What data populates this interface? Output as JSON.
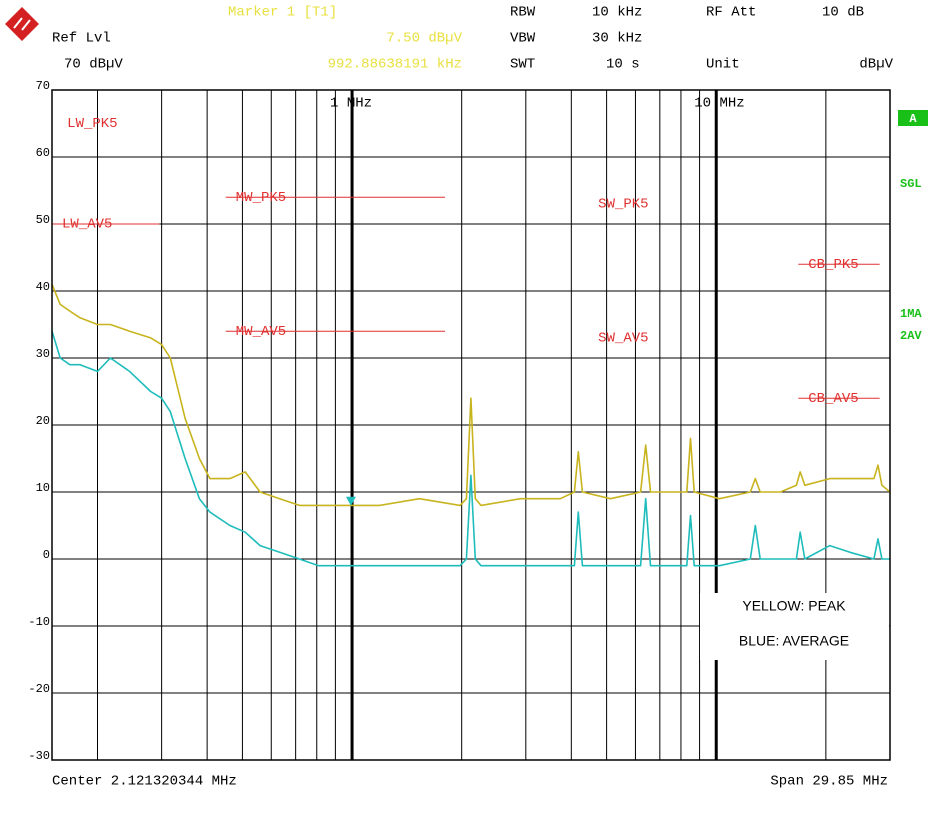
{
  "chart_data": {
    "type": "line",
    "header": {
      "marker": "Marker 1 [T1]",
      "ref_lvl": "Ref Lvl",
      "ref_value": "70 dBµV",
      "marker_level": "7.50 dBµV",
      "marker_freq": "992.88638191 kHz",
      "rbw": "RBW",
      "rbw_value": "10 kHz",
      "rf_att": "RF Att",
      "rf_att_value": "10 dB",
      "vbw": "VBW",
      "vbw_value": "30 kHz",
      "swt": "SWT",
      "swt_value": "10 s",
      "unit": "Unit",
      "unit_value": "dBµV"
    },
    "footer": {
      "center": "Center 2.121320344 MHz",
      "span": "Span 29.85 MHz"
    },
    "side_labels": {
      "trace": "A",
      "sweep": "SGL",
      "det1": "1MA",
      "det2": "2AV"
    },
    "log_x": true,
    "xlim": [
      0.15,
      30
    ],
    "ylim": [
      -30,
      70
    ],
    "yticks": [
      -30,
      -20,
      -10,
      0,
      10,
      20,
      30,
      40,
      50,
      60,
      70
    ],
    "xticks": [
      {
        "value": 1,
        "label": "1 MHz"
      },
      {
        "value": 10,
        "label": "10 MHz"
      }
    ],
    "xgrid": [
      0.2,
      0.3,
      0.4,
      0.5,
      0.6,
      0.7,
      0.8,
      0.9,
      2,
      3,
      4,
      5,
      6,
      7,
      8,
      9,
      20,
      30
    ],
    "grid": true,
    "x": [
      0.15,
      0.158,
      0.168,
      0.179,
      0.2,
      0.217,
      0.245,
      0.28,
      0.3,
      0.317,
      0.348,
      0.381,
      0.407,
      0.462,
      0.509,
      0.559,
      0.633,
      0.717,
      0.81,
      1.0,
      1.19,
      1.53,
      1.98,
      2.06,
      2.12,
      2.18,
      2.26,
      2.9,
      3.73,
      4.08,
      4.18,
      4.29,
      5.12,
      6.2,
      6.4,
      6.6,
      7.5,
      8.3,
      8.5,
      8.7,
      10.2,
      12.4,
      12.8,
      13.2,
      15.0,
      16.6,
      17.0,
      17.5,
      20.5,
      23.3,
      27.1,
      27.8,
      28.5,
      30
    ],
    "series": [
      {
        "name": "YELLOW: PEAK",
        "color": "#c8b41e",
        "values": [
          41,
          38,
          37,
          36,
          35,
          35,
          34,
          33,
          32,
          30,
          21,
          15,
          12,
          12,
          13,
          10,
          9,
          8,
          8,
          8,
          8,
          9,
          8,
          9,
          24,
          9,
          8,
          9,
          9,
          10,
          16,
          10,
          9,
          10,
          17,
          10,
          10,
          10,
          18,
          10,
          9,
          10,
          12,
          10,
          10,
          11,
          13,
          11,
          12,
          12,
          12,
          14,
          11,
          10
        ]
      },
      {
        "name": "BLUE: AVERAGE",
        "color": "#1fbcbc",
        "values": [
          34,
          30,
          29,
          29,
          28,
          30,
          28,
          25,
          24,
          22,
          15,
          9,
          7,
          5,
          4,
          2,
          1,
          0,
          -1,
          -1,
          -1,
          -1,
          -1,
          0,
          12.5,
          0,
          -1,
          -1,
          -1,
          -1,
          7,
          -1,
          -1,
          -1,
          9,
          -1,
          -1,
          -1,
          6.5,
          -1,
          -1,
          0,
          5,
          0,
          0,
          0,
          4,
          0,
          2,
          1,
          0,
          3,
          0,
          0
        ]
      }
    ],
    "limits": [
      {
        "label": "LW_PK5",
        "value": 65,
        "range": [
          0.155
        ]
      },
      {
        "label": "LW_AV5",
        "value": 50,
        "range": [
          0.15,
          0.296
        ]
      },
      {
        "label": "MW_PK5",
        "value": 54,
        "range": [
          0.45,
          1.8
        ]
      },
      {
        "label": "MW_AV5",
        "value": 34,
        "range": [
          0.45,
          1.8
        ]
      },
      {
        "label": "SW_PK5",
        "value": 53,
        "range": [
          4.45
        ]
      },
      {
        "label": "SW_AV5",
        "value": 33,
        "range": [
          4.45
        ]
      },
      {
        "label": "CB_PK5",
        "value": 44,
        "range": [
          16.8,
          28.1
        ]
      },
      {
        "label": "CB_AV5",
        "value": 24,
        "range": [
          16.8,
          28.1
        ]
      }
    ],
    "marker": {
      "freq": 0.99288638191,
      "value": 7.5
    },
    "limit_color": "#e03030"
  }
}
